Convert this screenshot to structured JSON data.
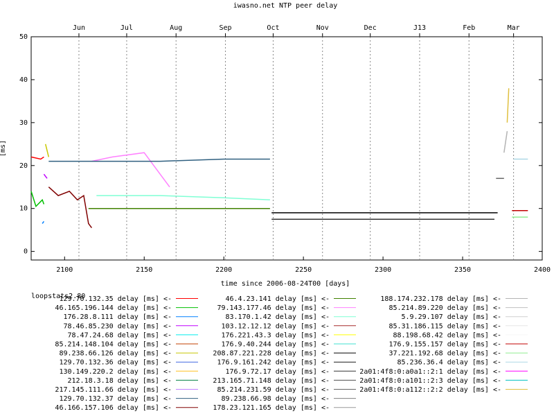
{
  "chart_data": {
    "type": "line",
    "title": "iwasno.net NTP peer delay",
    "xlabel": "time since 2006-08-24T00 [days]",
    "ylabel": "[ms]",
    "xlim": [
      2079,
      2400
    ],
    "ylim": [
      -2,
      50
    ],
    "x_ticks": [
      2100,
      2150,
      2200,
      2250,
      2300,
      2350,
      2400
    ],
    "y_ticks": [
      0,
      10,
      20,
      30,
      40,
      50
    ],
    "top_axis": {
      "labels": [
        "Jun",
        "Jul",
        "Aug",
        "Sep",
        "Oct",
        "Nov",
        "Dec",
        "J13",
        "Feb",
        "Mar"
      ],
      "positions": [
        2109,
        2139,
        2170,
        2201,
        2231,
        2262,
        2292,
        2323,
        2354,
        2382
      ]
    },
    "legend_heading": "loopstats2.80",
    "grid": "dotted vertical lines at month boundaries",
    "series": [
      {
        "name": "129.70.132.35 delay [ms] <-",
        "color": "#ff0000",
        "x": [
          2079,
          2085,
          2087
        ],
        "y": [
          22,
          21.5,
          22
        ]
      },
      {
        "name": "46.165.196.144 delay [ms] <-",
        "color": "#00c000",
        "x": [
          2079,
          2082,
          2086,
          2087
        ],
        "y": [
          14,
          10.5,
          12,
          11
        ]
      },
      {
        "name": "176.28.8.111 delay [ms] <-",
        "color": "#0080ff",
        "x": [
          2086,
          2087
        ],
        "y": [
          6.5,
          7
        ]
      },
      {
        "name": "78.46.85.230 delay [ms] <-",
        "color": "#c000ff",
        "x": [
          2087,
          2089
        ],
        "y": [
          18,
          17
        ]
      },
      {
        "name": "78.47.24.68 delay [ms] <-",
        "color": "#00eeee",
        "x": [],
        "y": []
      },
      {
        "name": "85.214.148.104 delay [ms] <-",
        "color": "#c04000",
        "x": [],
        "y": []
      },
      {
        "name": "89.238.66.126 delay [ms] <-",
        "color": "#c8c800",
        "x": [
          2088,
          2090
        ],
        "y": [
          25,
          22
        ]
      },
      {
        "name": "129.70.132.36 delay [ms] <-",
        "color": "#4169e1",
        "x": [],
        "y": []
      },
      {
        "name": "130.149.220.2 delay [ms] <-",
        "color": "#ffc020",
        "x": [],
        "y": []
      },
      {
        "name": "212.18.3.18 delay [ms] <-",
        "color": "#008040",
        "x": [],
        "y": []
      },
      {
        "name": "217.145.111.66 delay [ms] <-",
        "color": "#c080ff",
        "x": [],
        "y": []
      },
      {
        "name": "129.70.132.37 delay [ms] <-",
        "color": "#306080",
        "x": [],
        "y": []
      },
      {
        "name": "46.166.157.106 delay [ms] <-",
        "color": "#800000",
        "x": [
          2090,
          2096,
          2103,
          2108,
          2112,
          2115,
          2117
        ],
        "y": [
          15,
          13,
          14,
          12,
          13,
          6.5,
          5.5
        ]
      },
      {
        "name": "46.4.23.141 delay [ms] <-",
        "color": "#408000",
        "x": [
          2115,
          2150,
          2200,
          2229
        ],
        "y": [
          10,
          10,
          10,
          10
        ]
      },
      {
        "name": "79.143.177.46 delay [ms] <-",
        "color": "#ff80ff",
        "x": [
          2117,
          2130,
          2150,
          2166
        ],
        "y": [
          21,
          22,
          23,
          15
        ]
      },
      {
        "name": "83.170.1.42 delay [ms] <-",
        "color": "#7fffd4",
        "x": [
          2120,
          2160,
          2200,
          2229
        ],
        "y": [
          13,
          13,
          12.5,
          12
        ]
      },
      {
        "name": "103.12.12.12 delay [ms] <-",
        "color": "#a52a2a",
        "x": [],
        "y": []
      },
      {
        "name": "176.221.43.3 delay [ms] <-",
        "color": "#ffff00",
        "x": [],
        "y": []
      },
      {
        "name": "176.9.40.244 delay [ms] <-",
        "color": "#40e0d0",
        "x": [],
        "y": []
      },
      {
        "name": "208.87.221.228 delay [ms] <-",
        "color": "#000000",
        "x": [
          2230,
          2300,
          2360,
          2372
        ],
        "y": [
          9,
          9,
          9,
          9
        ]
      },
      {
        "name": "176.9.161.242 delay [ms] <-",
        "color": "#1a1a1a",
        "x": [],
        "y": []
      },
      {
        "name": "176.9.72.17 delay [ms] <-",
        "color": "#333333",
        "x": [
          2230,
          2300,
          2370
        ],
        "y": [
          7.5,
          7.5,
          7.5
        ]
      },
      {
        "name": "213.165.71.148 delay [ms] <-",
        "color": "#4d4d4d",
        "x": [],
        "y": []
      },
      {
        "name": "85.214.231.59 delay [ms] <-",
        "color": "#666666",
        "x": [
          2371,
          2376
        ],
        "y": [
          17,
          17
        ]
      },
      {
        "name": "89.238.66.98 delay [ms] <-",
        "color": "#7f7f7f",
        "x": [],
        "y": []
      },
      {
        "name": "178.23.121.165 delay [ms] <-",
        "color": "#999999",
        "x": [],
        "y": []
      },
      {
        "name": "188.174.232.178 delay [ms] <-",
        "color": "#b3b3b3",
        "x": [
          2376,
          2378
        ],
        "y": [
          23,
          28
        ]
      },
      {
        "name": "85.214.89.220 delay [ms] <-",
        "color": "#c0c0c0",
        "x": [],
        "y": []
      },
      {
        "name": "5.9.29.107 delay [ms] <-",
        "color": "#d0d0d0",
        "x": [],
        "y": []
      },
      {
        "name": "85.31.186.115 delay [ms] <-",
        "color": "#e5e5e5",
        "x": [],
        "y": []
      },
      {
        "name": "88.198.68.42 delay [ms] <-",
        "color": "#f7f7f7",
        "x": [],
        "y": []
      },
      {
        "name": "176.9.155.157 delay [ms] <-",
        "color": "#c00000",
        "x": [
          2381,
          2391
        ],
        "y": [
          9.5,
          9.5
        ]
      },
      {
        "name": "37.221.192.68 delay [ms] <-",
        "color": "#90ee90",
        "x": [
          2381,
          2391
        ],
        "y": [
          8,
          8
        ]
      },
      {
        "name": "85.236.36.4 delay [ms] <-",
        "color": "#add8e6",
        "x": [
          2382,
          2391
        ],
        "y": [
          21.5,
          21.5
        ]
      },
      {
        "name": "2a01:4f8:0:a0a1::2:1 delay [ms] <-",
        "color": "#ff00ff",
        "x": [],
        "y": []
      },
      {
        "name": "2a01:4f8:0:a101::2:3 delay [ms] <-",
        "color": "#00c0c0",
        "x": [],
        "y": []
      },
      {
        "name": "2a01:4f8:0:a112::2:2 delay [ms] <-",
        "color": "#e0c040",
        "x": [
          2378,
          2379
        ],
        "y": [
          30,
          38
        ]
      },
      {
        "name": "",
        "color": "#306080",
        "x": [
          2090,
          2120,
          2160,
          2200,
          2229
        ],
        "y": [
          21,
          21,
          21,
          21.5,
          21.5
        ]
      }
    ]
  }
}
